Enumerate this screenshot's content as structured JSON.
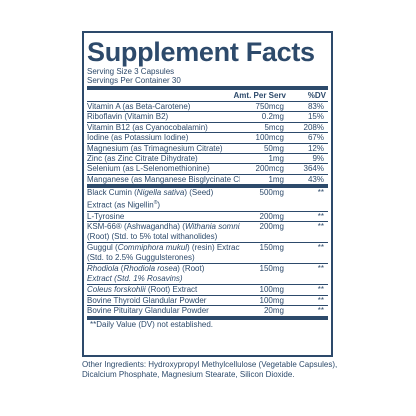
{
  "title": "Supplement Facts",
  "serving_size": "Serving Size 3 Capsules",
  "servings_per_container": "Servings Per Container 30",
  "header": {
    "amount": "Amt. Per Serv",
    "dv": "%DV"
  },
  "vitamins": [
    {
      "name": "Vitamin A (as Beta-Carotene)",
      "amount": "750mcg",
      "dv": "83%"
    },
    {
      "name": "Riboflavin (Vitamin B2)",
      "amount": "0.2mg",
      "dv": "15%"
    },
    {
      "name": "Vitamin B12 (as Cyanocobalamin)",
      "amount": "5mcg",
      "dv": "208%"
    },
    {
      "name": "Iodine (as Potassium Iodine)",
      "amount": "100mcg",
      "dv": "67%"
    },
    {
      "name": "Magnesium (as Trimagnesium Citrate)",
      "amount": "50mg",
      "dv": "12%"
    },
    {
      "name": "Zinc (as Zinc Citrate Dihydrate)",
      "amount": "1mg",
      "dv": "9%"
    },
    {
      "name": "Selenium (as L-Selenomethionine)",
      "amount": "200mcg",
      "dv": "364%"
    },
    {
      "name": "Manganese (as Manganese Bisglycinate Chelate)",
      "amount": "1mg",
      "dv": "43%"
    }
  ],
  "botanicals": [
    {
      "name_a": "Black Cumin (",
      "name_i": "Nigella sativa",
      "name_b": ") (Seed)",
      "line2_a": "Extract (as Nigellin",
      "line2_sup": "®",
      "line2_b": ")",
      "amount": "500mg",
      "dv": "**"
    },
    {
      "name": "L-Tyrosine",
      "amount": "200mg",
      "dv": "**"
    },
    {
      "name_a": "KSM-66® (Ashwagandha) (",
      "name_i": "Withania somnifera",
      "name_b": ")",
      "line2": "(Root) (Std. to 5% total withanolides)",
      "amount": "200mg",
      "dv": "**"
    },
    {
      "name_a": "Guggul (",
      "name_i": "Commiphora mukul",
      "name_b": ") (resin) Extract",
      "line2": "(Std. to 2.5% Guggulsterones)",
      "amount": "150mg",
      "dv": "**"
    },
    {
      "name_i": "Rhodiola",
      "name_a": " (",
      "name_i2": "Rhodiola rosea",
      "name_b": ") (Root)",
      "line2_i": "Extract (Std. 1% Rosavins)",
      "amount": "150mg",
      "dv": "**"
    },
    {
      "name_i": "Coleus forskohlii",
      "name_b": " (Root) Extract",
      "amount": "100mg",
      "dv": "**"
    },
    {
      "name": "Bovine Thyroid Glandular Powder",
      "amount": "100mg",
      "dv": "**"
    },
    {
      "name": "Bovine Pituitary Glandular Powder",
      "amount": "20mg",
      "dv": "**"
    }
  ],
  "footnote": "**Daily Value (DV) not established.",
  "other_ingredients": "Other Ingredients: Hydroxypropyl Methylcellulose (Vegetable Capsules), Dicalcium Phosphate, Magnesium Stearate, Silicon Dioxide."
}
